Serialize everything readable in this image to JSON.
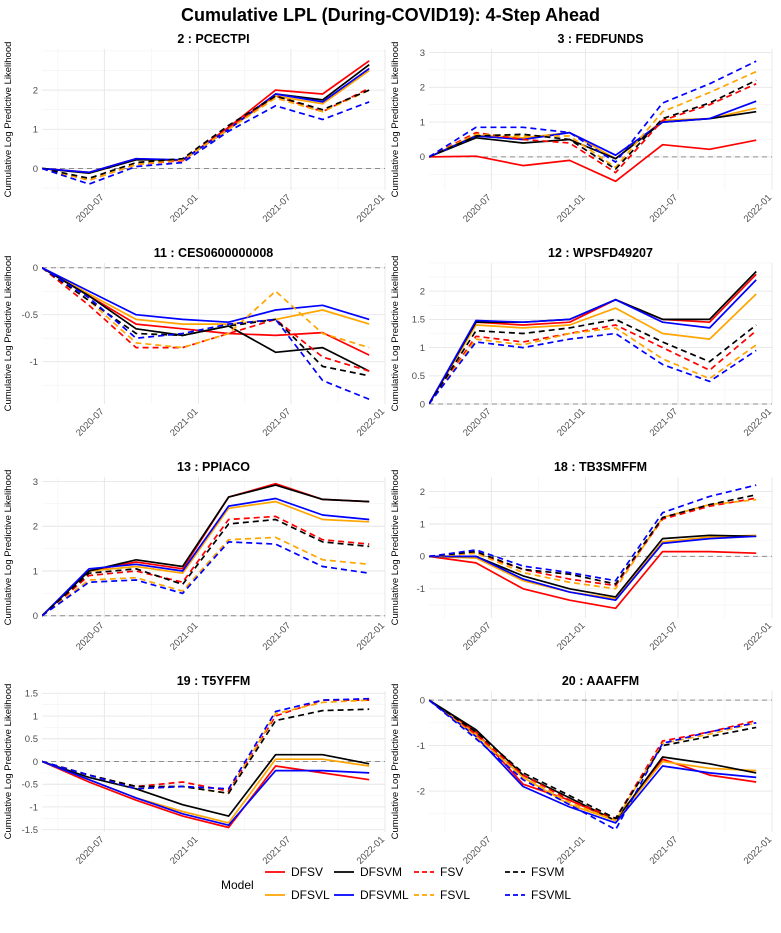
{
  "title": "Cumulative LPL (During-COVID19): 4-Step Ahead",
  "y_axis_label": "Cumulative Log Predictive Likelihood",
  "legend": {
    "title": "Model",
    "entries": [
      {
        "name": "DFSV",
        "color": "#ff0000",
        "dash": "solid"
      },
      {
        "name": "DFSVL",
        "color": "#ffa500",
        "dash": "solid"
      },
      {
        "name": "DFSVM",
        "color": "#000000",
        "dash": "solid"
      },
      {
        "name": "DFSVML",
        "color": "#0000ff",
        "dash": "solid"
      },
      {
        "name": "FSV",
        "color": "#ff0000",
        "dash": "dashed"
      },
      {
        "name": "FSVL",
        "color": "#ffa500",
        "dash": "dashed"
      },
      {
        "name": "FSVM",
        "color": "#000000",
        "dash": "dashed"
      },
      {
        "name": "FSVML",
        "color": "#0000ff",
        "dash": "dashed"
      }
    ]
  },
  "chart_data": [
    {
      "type": "line",
      "title": "2 : PCECTPI",
      "x": [
        "2020-03-01",
        "2020-06-01",
        "2020-09-01",
        "2020-12-01",
        "2021-03-01",
        "2021-06-01",
        "2021-09-01",
        "2021-12-01"
      ],
      "x_ticks": [
        "2020-07",
        "2021-01",
        "2021-07",
        "2022-01"
      ],
      "ylim": [
        -0.55,
        3.05
      ],
      "y_ticks": [
        0,
        1,
        2
      ],
      "series": [
        {
          "name": "DFSV",
          "values": [
            0,
            -0.1,
            0.25,
            0.2,
            1.05,
            2.0,
            1.9,
            2.75
          ]
        },
        {
          "name": "DFSVL",
          "values": [
            0,
            -0.12,
            0.22,
            0.22,
            1.0,
            1.85,
            1.65,
            2.5
          ]
        },
        {
          "name": "DFSVM",
          "values": [
            0,
            -0.12,
            0.22,
            0.22,
            1.0,
            1.9,
            1.75,
            2.65
          ]
        },
        {
          "name": "DFSVML",
          "values": [
            0,
            -0.1,
            0.25,
            0.22,
            1.0,
            1.9,
            1.7,
            2.55
          ]
        },
        {
          "name": "FSV",
          "values": [
            0,
            -0.3,
            0.1,
            0.2,
            1.05,
            1.85,
            1.45,
            2.05
          ]
        },
        {
          "name": "FSVL",
          "values": [
            0,
            -0.3,
            0.1,
            0.22,
            1.0,
            1.8,
            1.45,
            2.0
          ]
        },
        {
          "name": "FSVM",
          "values": [
            0,
            -0.25,
            0.15,
            0.25,
            1.1,
            1.85,
            1.5,
            2.0
          ]
        },
        {
          "name": "FSVML",
          "values": [
            0,
            -0.4,
            0.05,
            0.15,
            0.95,
            1.6,
            1.25,
            1.7
          ]
        }
      ]
    },
    {
      "type": "line",
      "title": "3 : FEDFUNDS",
      "x": [
        "2020-03-01",
        "2020-06-01",
        "2020-09-01",
        "2020-12-01",
        "2021-03-01",
        "2021-06-01",
        "2021-09-01",
        "2021-12-01"
      ],
      "x_ticks": [
        "2020-07",
        "2021-01",
        "2021-07",
        "2022-01"
      ],
      "ylim": [
        -0.95,
        3.1
      ],
      "y_ticks": [
        0,
        1,
        2,
        3
      ],
      "series": [
        {
          "name": "DFSV",
          "values": [
            0,
            0.02,
            -0.25,
            -0.1,
            -0.7,
            0.35,
            0.22,
            0.48
          ]
        },
        {
          "name": "DFSVL",
          "values": [
            0,
            0.62,
            0.55,
            0.7,
            -0.05,
            1.05,
            1.1,
            1.4
          ]
        },
        {
          "name": "DFSVM",
          "values": [
            0,
            0.55,
            0.4,
            0.5,
            -0.05,
            1.0,
            1.1,
            1.3
          ]
        },
        {
          "name": "DFSVML",
          "values": [
            0,
            0.6,
            0.5,
            0.7,
            0.05,
            1.0,
            1.1,
            1.6
          ]
        },
        {
          "name": "FSV",
          "values": [
            0,
            0.7,
            0.5,
            0.4,
            -0.45,
            1.05,
            1.5,
            2.1
          ]
        },
        {
          "name": "FSVL",
          "values": [
            0,
            0.65,
            0.6,
            0.6,
            -0.3,
            1.3,
            1.85,
            2.45
          ]
        },
        {
          "name": "FSVM",
          "values": [
            0,
            0.6,
            0.65,
            0.5,
            -0.35,
            1.1,
            1.55,
            2.2
          ]
        },
        {
          "name": "FSVML",
          "values": [
            0,
            0.85,
            0.85,
            0.7,
            -0.15,
            1.55,
            2.1,
            2.75
          ]
        }
      ]
    },
    {
      "type": "line",
      "title": "11 : CES0600000008",
      "x": [
        "2020-03-01",
        "2020-06-01",
        "2020-09-01",
        "2020-12-01",
        "2021-03-01",
        "2021-06-01",
        "2021-09-01",
        "2021-12-01"
      ],
      "x_ticks": [
        "2020-07",
        "2021-01",
        "2021-07",
        "2022-01"
      ],
      "ylim": [
        -1.45,
        0.05
      ],
      "y_ticks": [
        0.0,
        -0.5,
        -1.0
      ],
      "series": [
        {
          "name": "DFSV",
          "values": [
            0,
            -0.3,
            -0.6,
            -0.65,
            -0.7,
            -0.72,
            -0.69,
            -0.93
          ]
        },
        {
          "name": "DFSVL",
          "values": [
            0,
            -0.28,
            -0.55,
            -0.6,
            -0.6,
            -0.55,
            -0.45,
            -0.6
          ]
        },
        {
          "name": "DFSVM",
          "values": [
            0,
            -0.3,
            -0.65,
            -0.72,
            -0.62,
            -0.9,
            -0.85,
            -1.1
          ]
        },
        {
          "name": "DFSVML",
          "values": [
            0,
            -0.25,
            -0.5,
            -0.55,
            -0.58,
            -0.45,
            -0.4,
            -0.55
          ]
        },
        {
          "name": "FSV",
          "values": [
            0,
            -0.4,
            -0.85,
            -0.85,
            -0.7,
            -0.55,
            -0.95,
            -1.1
          ]
        },
        {
          "name": "FSVL",
          "values": [
            0,
            -0.35,
            -0.8,
            -0.85,
            -0.7,
            -0.25,
            -0.7,
            -0.85
          ]
        },
        {
          "name": "FSVM",
          "values": [
            0,
            -0.35,
            -0.7,
            -0.72,
            -0.62,
            -0.55,
            -1.05,
            -1.15
          ]
        },
        {
          "name": "FSVML",
          "values": [
            0,
            -0.32,
            -0.75,
            -0.7,
            -0.6,
            -0.55,
            -1.2,
            -1.4
          ]
        }
      ]
    },
    {
      "type": "line",
      "title": "12 : WPSFD49207",
      "x": [
        "2020-03-01",
        "2020-06-01",
        "2020-09-01",
        "2020-12-01",
        "2021-03-01",
        "2021-06-01",
        "2021-09-01",
        "2021-12-01"
      ],
      "x_ticks": [
        "2020-07",
        "2021-01",
        "2021-07",
        "2022-01"
      ],
      "ylim": [
        0,
        2.5
      ],
      "y_ticks": [
        0.0,
        0.5,
        1.0,
        1.5,
        2.0
      ],
      "series": [
        {
          "name": "DFSV",
          "values": [
            0,
            1.45,
            1.4,
            1.45,
            1.85,
            1.5,
            1.45,
            2.3
          ]
        },
        {
          "name": "DFSVL",
          "values": [
            0,
            1.4,
            1.35,
            1.4,
            1.7,
            1.25,
            1.15,
            1.95
          ]
        },
        {
          "name": "DFSVM",
          "values": [
            0,
            1.45,
            1.45,
            1.5,
            1.85,
            1.5,
            1.5,
            2.35
          ]
        },
        {
          "name": "DFSVML",
          "values": [
            0,
            1.48,
            1.45,
            1.5,
            1.85,
            1.45,
            1.35,
            2.2
          ]
        },
        {
          "name": "FSV",
          "values": [
            0,
            1.2,
            1.1,
            1.25,
            1.4,
            1.0,
            0.6,
            1.3
          ]
        },
        {
          "name": "FSVL",
          "values": [
            0,
            1.15,
            1.05,
            1.25,
            1.35,
            0.8,
            0.45,
            1.05
          ]
        },
        {
          "name": "FSVM",
          "values": [
            0,
            1.3,
            1.25,
            1.35,
            1.5,
            1.1,
            0.75,
            1.4
          ]
        },
        {
          "name": "FSVML",
          "values": [
            0,
            1.1,
            1.0,
            1.15,
            1.25,
            0.7,
            0.4,
            0.95
          ]
        }
      ]
    },
    {
      "type": "line",
      "title": "13 : PPIACO",
      "x": [
        "2020-03-01",
        "2020-06-01",
        "2020-09-01",
        "2020-12-01",
        "2021-03-01",
        "2021-06-01",
        "2021-09-01",
        "2021-12-01"
      ],
      "x_ticks": [
        "2020-07",
        "2021-01",
        "2021-07",
        "2022-01"
      ],
      "ylim": [
        -0.05,
        3.1
      ],
      "y_ticks": [
        0,
        1,
        2,
        3
      ],
      "series": [
        {
          "name": "DFSV",
          "values": [
            0,
            1.0,
            1.2,
            1.05,
            2.65,
            2.95,
            2.6,
            2.55
          ]
        },
        {
          "name": "DFSVL",
          "values": [
            0,
            1.0,
            1.1,
            0.95,
            2.4,
            2.55,
            2.15,
            2.1
          ]
        },
        {
          "name": "DFSVM",
          "values": [
            0,
            1.0,
            1.25,
            1.1,
            2.65,
            2.92,
            2.6,
            2.55
          ]
        },
        {
          "name": "DFSVML",
          "values": [
            0,
            1.05,
            1.15,
            1.0,
            2.45,
            2.62,
            2.25,
            2.15
          ]
        },
        {
          "name": "FSV",
          "values": [
            0,
            0.9,
            1.0,
            0.75,
            2.15,
            2.22,
            1.7,
            1.6
          ]
        },
        {
          "name": "FSVL",
          "values": [
            0,
            0.8,
            0.85,
            0.55,
            1.7,
            1.75,
            1.25,
            1.15
          ]
        },
        {
          "name": "FSVM",
          "values": [
            0,
            0.95,
            1.05,
            0.7,
            2.05,
            2.15,
            1.65,
            1.55
          ]
        },
        {
          "name": "FSVML",
          "values": [
            0,
            0.75,
            0.8,
            0.5,
            1.65,
            1.6,
            1.1,
            0.95
          ]
        }
      ]
    },
    {
      "type": "line",
      "title": "18 : TB3SMFFM",
      "x": [
        "2020-03-01",
        "2020-06-01",
        "2020-09-01",
        "2020-12-01",
        "2021-03-01",
        "2021-06-01",
        "2021-09-01",
        "2021-12-01"
      ],
      "x_ticks": [
        "2020-07",
        "2021-01",
        "2021-07",
        "2022-01"
      ],
      "ylim": [
        -1.9,
        2.45
      ],
      "y_ticks": [
        -1,
        0,
        1,
        2
      ],
      "series": [
        {
          "name": "DFSV",
          "values": [
            0,
            -0.2,
            -1.0,
            -1.35,
            -1.6,
            0.15,
            0.15,
            0.1
          ]
        },
        {
          "name": "DFSVL",
          "values": [
            0,
            -0.05,
            -0.75,
            -1.1,
            -1.3,
            0.45,
            0.6,
            0.65
          ]
        },
        {
          "name": "DFSVM",
          "values": [
            0,
            0.0,
            -0.6,
            -1.0,
            -1.25,
            0.55,
            0.65,
            0.62
          ]
        },
        {
          "name": "DFSVML",
          "values": [
            0,
            0.0,
            -0.7,
            -1.1,
            -1.35,
            0.4,
            0.55,
            0.62
          ]
        },
        {
          "name": "FSV",
          "values": [
            0,
            0.1,
            -0.4,
            -0.7,
            -0.9,
            1.15,
            1.55,
            1.8
          ]
        },
        {
          "name": "FSVL",
          "values": [
            0,
            0.1,
            -0.5,
            -0.8,
            -1.0,
            1.2,
            1.6,
            1.75
          ]
        },
        {
          "name": "FSVM",
          "values": [
            0,
            0.15,
            -0.4,
            -0.55,
            -0.85,
            1.2,
            1.6,
            1.9
          ]
        },
        {
          "name": "FSVML",
          "values": [
            0,
            0.2,
            -0.3,
            -0.5,
            -0.75,
            1.35,
            1.85,
            2.2
          ]
        }
      ]
    },
    {
      "type": "line",
      "title": "19 : T5YFFM",
      "x": [
        "2020-03-01",
        "2020-06-01",
        "2020-09-01",
        "2020-12-01",
        "2021-03-01",
        "2021-06-01",
        "2021-09-01",
        "2021-12-01"
      ],
      "x_ticks": [
        "2020-07",
        "2021-01",
        "2021-07",
        "2022-01"
      ],
      "ylim": [
        -1.55,
        1.55
      ],
      "y_ticks": [
        1.5,
        1.0,
        0.5,
        0.0,
        -0.5,
        -1.0,
        -1.5
      ],
      "series": [
        {
          "name": "DFSV",
          "values": [
            0,
            -0.45,
            -0.85,
            -1.2,
            -1.45,
            -0.1,
            -0.25,
            -0.4
          ]
        },
        {
          "name": "DFSVL",
          "values": [
            0,
            -0.4,
            -0.8,
            -1.1,
            -1.35,
            0.05,
            0.05,
            -0.1
          ]
        },
        {
          "name": "DFSVM",
          "values": [
            0,
            -0.35,
            -0.6,
            -0.95,
            -1.2,
            0.15,
            0.15,
            -0.05
          ]
        },
        {
          "name": "DFSVML",
          "values": [
            0,
            -0.4,
            -0.8,
            -1.15,
            -1.4,
            -0.2,
            -0.2,
            -0.25
          ]
        },
        {
          "name": "FSV",
          "values": [
            0,
            -0.3,
            -0.55,
            -0.45,
            -0.65,
            1.0,
            1.35,
            1.35
          ]
        },
        {
          "name": "FSVL",
          "values": [
            0,
            -0.3,
            -0.6,
            -0.55,
            -0.7,
            1.05,
            1.3,
            1.35
          ]
        },
        {
          "name": "FSVM",
          "values": [
            0,
            -0.3,
            -0.55,
            -0.55,
            -0.7,
            0.9,
            1.12,
            1.15
          ]
        },
        {
          "name": "FSVML",
          "values": [
            0,
            -0.3,
            -0.6,
            -0.55,
            -0.6,
            1.1,
            1.35,
            1.38
          ]
        }
      ]
    },
    {
      "type": "line",
      "title": "20 : AAAFFM",
      "x": [
        "2020-03-01",
        "2020-06-01",
        "2020-09-01",
        "2020-12-01",
        "2021-03-01",
        "2021-06-01",
        "2021-09-01",
        "2021-12-01"
      ],
      "x_ticks": [
        "2020-07",
        "2021-01",
        "2021-07",
        "2022-01"
      ],
      "ylim": [
        -2.9,
        0.2
      ],
      "y_ticks": [
        0,
        -1,
        -2
      ],
      "series": [
        {
          "name": "DFSV",
          "values": [
            0,
            -0.7,
            -1.85,
            -2.2,
            -2.65,
            -1.3,
            -1.65,
            -1.8
          ]
        },
        {
          "name": "DFSVL",
          "values": [
            0,
            -0.75,
            -1.7,
            -2.3,
            -2.65,
            -1.35,
            -1.5,
            -1.55
          ]
        },
        {
          "name": "DFSVM",
          "values": [
            0,
            -0.65,
            -1.65,
            -2.15,
            -2.65,
            -1.25,
            -1.4,
            -1.6
          ]
        },
        {
          "name": "DFSVML",
          "values": [
            0,
            -0.8,
            -1.9,
            -2.35,
            -2.7,
            -1.45,
            -1.6,
            -1.7
          ]
        },
        {
          "name": "FSV",
          "values": [
            0,
            -0.75,
            -1.65,
            -2.2,
            -2.6,
            -0.9,
            -0.7,
            -0.45
          ]
        },
        {
          "name": "FSVL",
          "values": [
            0,
            -0.8,
            -1.7,
            -2.25,
            -2.65,
            -0.95,
            -0.75,
            -0.5
          ]
        },
        {
          "name": "FSVM",
          "values": [
            0,
            -0.7,
            -1.6,
            -2.1,
            -2.6,
            -1.0,
            -0.8,
            -0.6
          ]
        },
        {
          "name": "FSVML",
          "values": [
            0,
            -0.85,
            -1.75,
            -2.3,
            -2.85,
            -0.95,
            -0.7,
            -0.5
          ]
        }
      ]
    }
  ]
}
